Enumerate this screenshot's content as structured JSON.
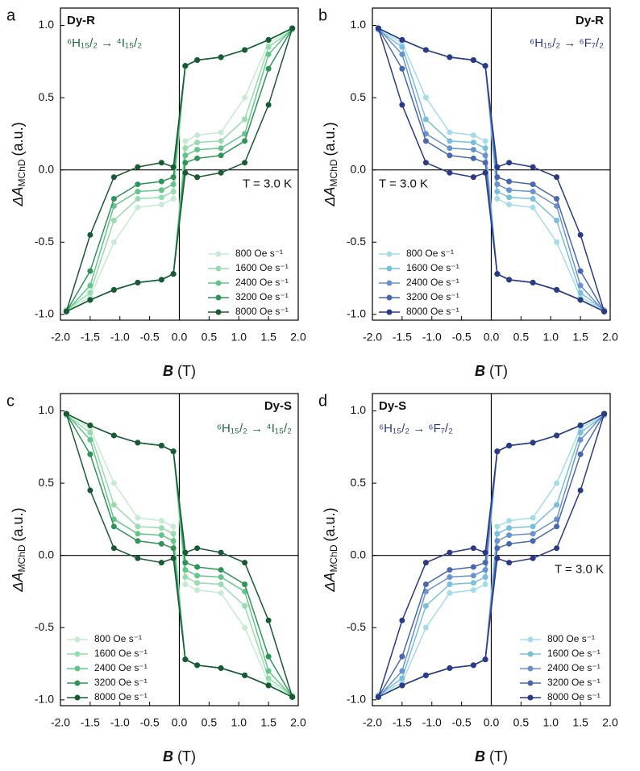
{
  "chart_data": [
    {
      "type": "line",
      "panel": "a",
      "sample": "Dy-R",
      "transition": "⁶H₁₅/₂ → ⁴I₁₅/₂",
      "transition_color": "#1f6b3e",
      "temperature": "T = 3.0 K",
      "xlabel": {
        "main": "B",
        "unit": "(T)"
      },
      "ylabel": {
        "main": "ΔA",
        "sub": "MChD",
        "unit": "(a.u.)"
      },
      "label_corner": "top-left",
      "temperature_side": "right",
      "legend": "lower right",
      "xlim": [
        -2,
        2
      ],
      "ylim": [
        -1.04,
        1.12
      ],
      "xticks": [
        {
          "value": -2,
          "label": "-2.0"
        },
        {
          "value": -1.5,
          "label": "-1.5"
        },
        {
          "value": -1,
          "label": "-1.0"
        },
        {
          "value": -0.5,
          "label": "-0.5"
        },
        {
          "value": 0,
          "label": "0.0"
        },
        {
          "value": 0.5,
          "label": "0.5"
        },
        {
          "value": 1,
          "label": "1.0"
        },
        {
          "value": 1.5,
          "label": "1.5"
        },
        {
          "value": 2,
          "label": "2.0"
        }
      ],
      "yticks": [
        {
          "value": -1,
          "label": "-1.0"
        },
        {
          "value": -0.5,
          "label": "-0.5"
        },
        {
          "value": 0,
          "label": "0.0"
        },
        {
          "value": 0.5,
          "label": "0.5"
        },
        {
          "value": 1,
          "label": "1.0"
        }
      ],
      "x": [
        1.9,
        1.5,
        1.1,
        0.7,
        0.3,
        0.1,
        -0.1,
        -0.3,
        -0.7,
        -1.1,
        -1.5,
        -1.9,
        -1.9,
        -1.5,
        -1.1,
        -0.7,
        -0.3,
        -0.1,
        0.1,
        0.3,
        0.7,
        1.1,
        1.5,
        1.9
      ],
      "series": [
        {
          "name": "800 Oe s⁻¹",
          "color": "#c6ebd2",
          "values": [
            0.98,
            0.9,
            0.83,
            0.78,
            0.76,
            0.72,
            -0.2,
            -0.24,
            -0.26,
            -0.5,
            -0.88,
            -0.97,
            -0.98,
            -0.9,
            -0.83,
            -0.78,
            -0.76,
            -0.72,
            0.2,
            0.24,
            0.26,
            0.5,
            0.88,
            0.97
          ]
        },
        {
          "name": "1600 Oe s⁻¹",
          "color": "#97dbae",
          "values": [
            0.98,
            0.9,
            0.83,
            0.78,
            0.76,
            0.72,
            -0.15,
            -0.19,
            -0.2,
            -0.35,
            -0.85,
            -0.97,
            -0.98,
            -0.9,
            -0.83,
            -0.78,
            -0.76,
            -0.72,
            0.15,
            0.19,
            0.2,
            0.35,
            0.85,
            0.97
          ]
        },
        {
          "name": "2400 Oe s⁻¹",
          "color": "#63c58a",
          "values": [
            0.98,
            0.9,
            0.83,
            0.78,
            0.76,
            0.72,
            -0.1,
            -0.14,
            -0.15,
            -0.25,
            -0.8,
            -0.98,
            -0.98,
            -0.9,
            -0.83,
            -0.78,
            -0.76,
            -0.72,
            0.1,
            0.14,
            0.15,
            0.25,
            0.8,
            0.98
          ]
        },
        {
          "name": "3200 Oe s⁻¹",
          "color": "#2e9458",
          "values": [
            0.98,
            0.9,
            0.83,
            0.78,
            0.76,
            0.72,
            -0.05,
            -0.08,
            -0.1,
            -0.2,
            -0.7,
            -0.98,
            -0.98,
            -0.9,
            -0.83,
            -0.78,
            -0.76,
            -0.72,
            0.05,
            0.08,
            0.1,
            0.2,
            0.7,
            0.98
          ]
        },
        {
          "name": "8000 Oe s⁻¹",
          "color": "#185a33",
          "values": [
            0.98,
            0.9,
            0.83,
            0.78,
            0.76,
            0.72,
            0.02,
            0.05,
            0.02,
            -0.05,
            -0.45,
            -0.98,
            -0.98,
            -0.9,
            -0.83,
            -0.78,
            -0.76,
            -0.72,
            -0.02,
            -0.05,
            -0.02,
            0.05,
            0.45,
            0.98
          ]
        }
      ]
    },
    {
      "type": "line",
      "panel": "b",
      "sample": "Dy-R",
      "transition": "⁶H₁₅/₂ → ⁶F₇/₂",
      "transition_color": "#2a3a8a",
      "temperature": "T = 3.0 K",
      "xlabel": {
        "main": "B",
        "unit": "(T)"
      },
      "ylabel": {
        "main": "ΔA",
        "sub": "MChD",
        "unit": "(a.u.)"
      },
      "label_corner": "top-right",
      "temperature_side": "left",
      "legend": "lower left",
      "xlim": [
        -2,
        2
      ],
      "ylim": [
        -1.04,
        1.12
      ],
      "xticks": [
        {
          "value": -2,
          "label": "-2.0"
        },
        {
          "value": -1.5,
          "label": "-1.5"
        },
        {
          "value": -1,
          "label": "-1.0"
        },
        {
          "value": -0.5,
          "label": "-0.5"
        },
        {
          "value": 0,
          "label": "0.0"
        },
        {
          "value": 0.5,
          "label": "0.5"
        },
        {
          "value": 1,
          "label": "1.0"
        },
        {
          "value": 1.5,
          "label": "1.5"
        },
        {
          "value": 2,
          "label": "2.0"
        }
      ],
      "yticks": [
        {
          "value": -1,
          "label": "-1.0"
        },
        {
          "value": -0.5,
          "label": "-0.5"
        },
        {
          "value": 0,
          "label": "0.0"
        },
        {
          "value": 0.5,
          "label": "0.5"
        },
        {
          "value": 1,
          "label": "1.0"
        }
      ],
      "x": [
        1.9,
        1.5,
        1.1,
        0.7,
        0.3,
        0.1,
        -0.1,
        -0.3,
        -0.7,
        -1.1,
        -1.5,
        -1.9,
        -1.9,
        -1.5,
        -1.1,
        -0.7,
        -0.3,
        -0.1,
        0.1,
        0.3,
        0.7,
        1.1,
        1.5,
        1.9
      ],
      "series": [
        {
          "name": "800 Oe s⁻¹",
          "color": "#a6dbe8",
          "values": [
            -0.98,
            -0.9,
            -0.83,
            -0.78,
            -0.76,
            -0.72,
            0.2,
            0.24,
            0.26,
            0.5,
            0.88,
            0.97,
            0.98,
            0.9,
            0.83,
            0.78,
            0.76,
            0.72,
            -0.2,
            -0.24,
            -0.26,
            -0.5,
            -0.88,
            -0.97
          ]
        },
        {
          "name": "1600 Oe s⁻¹",
          "color": "#79bfdb",
          "values": [
            -0.98,
            -0.9,
            -0.83,
            -0.78,
            -0.76,
            -0.72,
            0.15,
            0.19,
            0.2,
            0.35,
            0.85,
            0.97,
            0.98,
            0.9,
            0.83,
            0.78,
            0.76,
            0.72,
            -0.15,
            -0.19,
            -0.2,
            -0.35,
            -0.85,
            -0.97
          ]
        },
        {
          "name": "2400 Oe s⁻¹",
          "color": "#6893cc",
          "values": [
            -0.98,
            -0.9,
            -0.83,
            -0.78,
            -0.76,
            -0.72,
            0.1,
            0.14,
            0.15,
            0.25,
            0.8,
            0.98,
            0.98,
            0.9,
            0.83,
            0.78,
            0.76,
            0.72,
            -0.1,
            -0.14,
            -0.15,
            -0.25,
            -0.8,
            -0.98
          ]
        },
        {
          "name": "3200 Oe s⁻¹",
          "color": "#4967af",
          "values": [
            -0.98,
            -0.9,
            -0.83,
            -0.78,
            -0.76,
            -0.72,
            0.05,
            0.08,
            0.1,
            0.2,
            0.7,
            0.98,
            0.98,
            0.9,
            0.83,
            0.78,
            0.76,
            0.72,
            -0.05,
            -0.08,
            -0.1,
            -0.2,
            -0.7,
            -0.98
          ]
        },
        {
          "name": "8000 Oe s⁻¹",
          "color": "#2b3a87",
          "values": [
            -0.98,
            -0.9,
            -0.83,
            -0.78,
            -0.76,
            -0.72,
            -0.02,
            -0.05,
            -0.02,
            0.05,
            0.45,
            0.98,
            0.98,
            0.9,
            0.83,
            0.78,
            0.76,
            0.72,
            0.02,
            0.05,
            0.02,
            -0.05,
            -0.45,
            -0.98
          ]
        }
      ]
    },
    {
      "type": "line",
      "panel": "c",
      "sample": "Dy-S",
      "transition": "⁶H₁₅/₂ → ⁴I₁₅/₂",
      "transition_color": "#1f6b3e",
      "xlabel": {
        "main": "B",
        "unit": "(T)"
      },
      "ylabel": {
        "main": "ΔA",
        "sub": "MChD",
        "unit": "(a.u.)"
      },
      "label_corner": "top-right",
      "legend": "lower left",
      "xlim": [
        -2,
        2
      ],
      "ylim": [
        -1.04,
        1.12
      ],
      "xticks": [
        {
          "value": -2,
          "label": "-2.0"
        },
        {
          "value": -1.5,
          "label": "-1.5"
        },
        {
          "value": -1,
          "label": "-1.0"
        },
        {
          "value": -0.5,
          "label": "-0.5"
        },
        {
          "value": 0,
          "label": "0.0"
        },
        {
          "value": 0.5,
          "label": "0.5"
        },
        {
          "value": 1,
          "label": "1.0"
        },
        {
          "value": 1.5,
          "label": "1.5"
        },
        {
          "value": 2,
          "label": "2.0"
        }
      ],
      "yticks": [
        {
          "value": -1,
          "label": "-1.0"
        },
        {
          "value": -0.5,
          "label": "-0.5"
        },
        {
          "value": 0,
          "label": "0.0"
        },
        {
          "value": 0.5,
          "label": "0.5"
        },
        {
          "value": 1,
          "label": "1.0"
        }
      ],
      "x": [
        1.9,
        1.5,
        1.1,
        0.7,
        0.3,
        0.1,
        -0.1,
        -0.3,
        -0.7,
        -1.1,
        -1.5,
        -1.9,
        -1.9,
        -1.5,
        -1.1,
        -0.7,
        -0.3,
        -0.1,
        0.1,
        0.3,
        0.7,
        1.1,
        1.5,
        1.9
      ],
      "series": [
        {
          "name": "800 Oe s⁻¹",
          "color": "#c6ebd2",
          "values": [
            -0.98,
            -0.9,
            -0.83,
            -0.78,
            -0.76,
            -0.72,
            0.2,
            0.24,
            0.26,
            0.5,
            0.88,
            0.97,
            0.98,
            0.9,
            0.83,
            0.78,
            0.76,
            0.72,
            -0.2,
            -0.24,
            -0.26,
            -0.5,
            -0.88,
            -0.97
          ]
        },
        {
          "name": "1600 Oe s⁻¹",
          "color": "#97dbae",
          "values": [
            -0.98,
            -0.9,
            -0.83,
            -0.78,
            -0.76,
            -0.72,
            0.15,
            0.19,
            0.2,
            0.35,
            0.85,
            0.97,
            0.98,
            0.9,
            0.83,
            0.78,
            0.76,
            0.72,
            -0.15,
            -0.19,
            -0.2,
            -0.35,
            -0.85,
            -0.97
          ]
        },
        {
          "name": "2400 Oe s⁻¹",
          "color": "#63c58a",
          "values": [
            -0.98,
            -0.9,
            -0.83,
            -0.78,
            -0.76,
            -0.72,
            0.1,
            0.14,
            0.15,
            0.25,
            0.8,
            0.98,
            0.98,
            0.9,
            0.83,
            0.78,
            0.76,
            0.72,
            -0.1,
            -0.14,
            -0.15,
            -0.25,
            -0.8,
            -0.98
          ]
        },
        {
          "name": "3200 Oe s⁻¹",
          "color": "#2e9458",
          "values": [
            -0.98,
            -0.9,
            -0.83,
            -0.78,
            -0.76,
            -0.72,
            0.05,
            0.08,
            0.1,
            0.2,
            0.7,
            0.98,
            0.98,
            0.9,
            0.83,
            0.78,
            0.76,
            0.72,
            -0.05,
            -0.08,
            -0.1,
            -0.2,
            -0.7,
            -0.98
          ]
        },
        {
          "name": "8000 Oe s⁻¹",
          "color": "#185a33",
          "values": [
            -0.98,
            -0.9,
            -0.83,
            -0.78,
            -0.76,
            -0.72,
            -0.02,
            -0.05,
            -0.02,
            0.05,
            0.45,
            0.98,
            0.98,
            0.9,
            0.83,
            0.78,
            0.76,
            0.72,
            0.02,
            0.05,
            0.02,
            -0.05,
            -0.45,
            -0.98
          ]
        }
      ]
    },
    {
      "type": "line",
      "panel": "d",
      "sample": "Dy-S",
      "transition": "⁶H₁₅/₂ → ⁶F₇/₂",
      "transition_color": "#2a3a8a",
      "temperature": "T = 3.0 K",
      "xlabel": {
        "main": "B",
        "unit": "(T)"
      },
      "ylabel": {
        "main": "ΔA",
        "sub": "MChD",
        "unit": "(a.u.)"
      },
      "label_corner": "top-left",
      "temperature_side": "right",
      "legend": "lower right",
      "xlim": [
        -2,
        2
      ],
      "ylim": [
        -1.04,
        1.12
      ],
      "xticks": [
        {
          "value": -2,
          "label": "-2.0"
        },
        {
          "value": -1.5,
          "label": "-1.5"
        },
        {
          "value": -1,
          "label": "-1.0"
        },
        {
          "value": -0.5,
          "label": "-0.5"
        },
        {
          "value": 0,
          "label": "0.0"
        },
        {
          "value": 0.5,
          "label": "0.5"
        },
        {
          "value": 1,
          "label": "1.0"
        },
        {
          "value": 1.5,
          "label": "1.5"
        },
        {
          "value": 2,
          "label": "2.0"
        }
      ],
      "yticks": [
        {
          "value": -1,
          "label": "-1.0"
        },
        {
          "value": -0.5,
          "label": "-0.5"
        },
        {
          "value": 0,
          "label": "0.0"
        },
        {
          "value": 0.5,
          "label": "0.5"
        },
        {
          "value": 1,
          "label": "1.0"
        }
      ],
      "x": [
        1.9,
        1.5,
        1.1,
        0.7,
        0.3,
        0.1,
        -0.1,
        -0.3,
        -0.7,
        -1.1,
        -1.5,
        -1.9,
        -1.9,
        -1.5,
        -1.1,
        -0.7,
        -0.3,
        -0.1,
        0.1,
        0.3,
        0.7,
        1.1,
        1.5,
        1.9
      ],
      "series": [
        {
          "name": "800 Oe s⁻¹",
          "color": "#a6dbe8",
          "values": [
            0.98,
            0.9,
            0.83,
            0.78,
            0.76,
            0.72,
            -0.2,
            -0.24,
            -0.26,
            -0.5,
            -0.88,
            -0.97,
            -0.98,
            -0.9,
            -0.83,
            -0.78,
            -0.76,
            -0.72,
            0.2,
            0.24,
            0.26,
            0.5,
            0.88,
            0.97
          ]
        },
        {
          "name": "1600 Oe s⁻¹",
          "color": "#79bfdb",
          "values": [
            0.98,
            0.9,
            0.83,
            0.78,
            0.76,
            0.72,
            -0.15,
            -0.19,
            -0.2,
            -0.35,
            -0.85,
            -0.97,
            -0.98,
            -0.9,
            -0.83,
            -0.78,
            -0.76,
            -0.72,
            0.15,
            0.19,
            0.2,
            0.35,
            0.85,
            0.97
          ]
        },
        {
          "name": "2400 Oe s⁻¹",
          "color": "#6893cc",
          "values": [
            0.98,
            0.9,
            0.83,
            0.78,
            0.76,
            0.72,
            -0.1,
            -0.14,
            -0.15,
            -0.25,
            -0.8,
            -0.98,
            -0.98,
            -0.9,
            -0.83,
            -0.78,
            -0.76,
            -0.72,
            0.1,
            0.14,
            0.15,
            0.25,
            0.8,
            0.98
          ]
        },
        {
          "name": "3200 Oe s⁻¹",
          "color": "#4967af",
          "values": [
            0.98,
            0.9,
            0.83,
            0.78,
            0.76,
            0.72,
            -0.05,
            -0.08,
            -0.1,
            -0.2,
            -0.7,
            -0.98,
            -0.98,
            -0.9,
            -0.83,
            -0.78,
            -0.76,
            -0.72,
            0.05,
            0.08,
            0.1,
            0.2,
            0.7,
            0.98
          ]
        },
        {
          "name": "8000 Oe s⁻¹",
          "color": "#2b3a87",
          "values": [
            0.98,
            0.9,
            0.83,
            0.78,
            0.76,
            0.72,
            0.02,
            0.05,
            0.02,
            -0.05,
            -0.45,
            -0.98,
            -0.98,
            -0.9,
            -0.83,
            -0.78,
            -0.76,
            -0.72,
            -0.02,
            -0.05,
            -0.02,
            0.05,
            0.45,
            0.98
          ]
        }
      ]
    }
  ]
}
